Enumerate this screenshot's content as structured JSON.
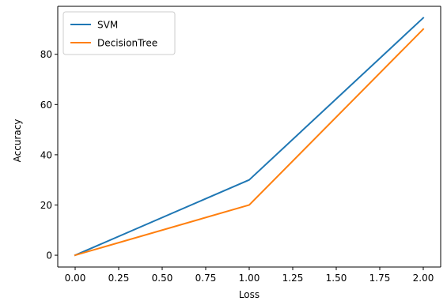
{
  "chart_data": {
    "type": "line",
    "xlabel": "Loss",
    "ylabel": "Accuracy",
    "xlim": [
      -0.1,
      2.1
    ],
    "ylim": [
      -4.7,
      99.1
    ],
    "xticks": [
      0.0,
      0.25,
      0.5,
      0.75,
      1.0,
      1.25,
      1.5,
      1.75,
      2.0
    ],
    "xtick_labels": [
      "0.00",
      "0.25",
      "0.50",
      "0.75",
      "1.00",
      "1.25",
      "1.50",
      "1.75",
      "2.00"
    ],
    "yticks": [
      0,
      20,
      40,
      60,
      80
    ],
    "ytick_labels": [
      "0",
      "20",
      "40",
      "60",
      "80"
    ],
    "grid": false,
    "legend_position": "top-left",
    "series": [
      {
        "name": "SVM",
        "color": "#1f77b4",
        "x": [
          0,
          1,
          2
        ],
        "y": [
          0,
          30,
          94.5
        ]
      },
      {
        "name": "DecisionTree",
        "color": "#ff7f0e",
        "x": [
          0,
          1,
          2
        ],
        "y": [
          0,
          20,
          90
        ]
      }
    ]
  }
}
